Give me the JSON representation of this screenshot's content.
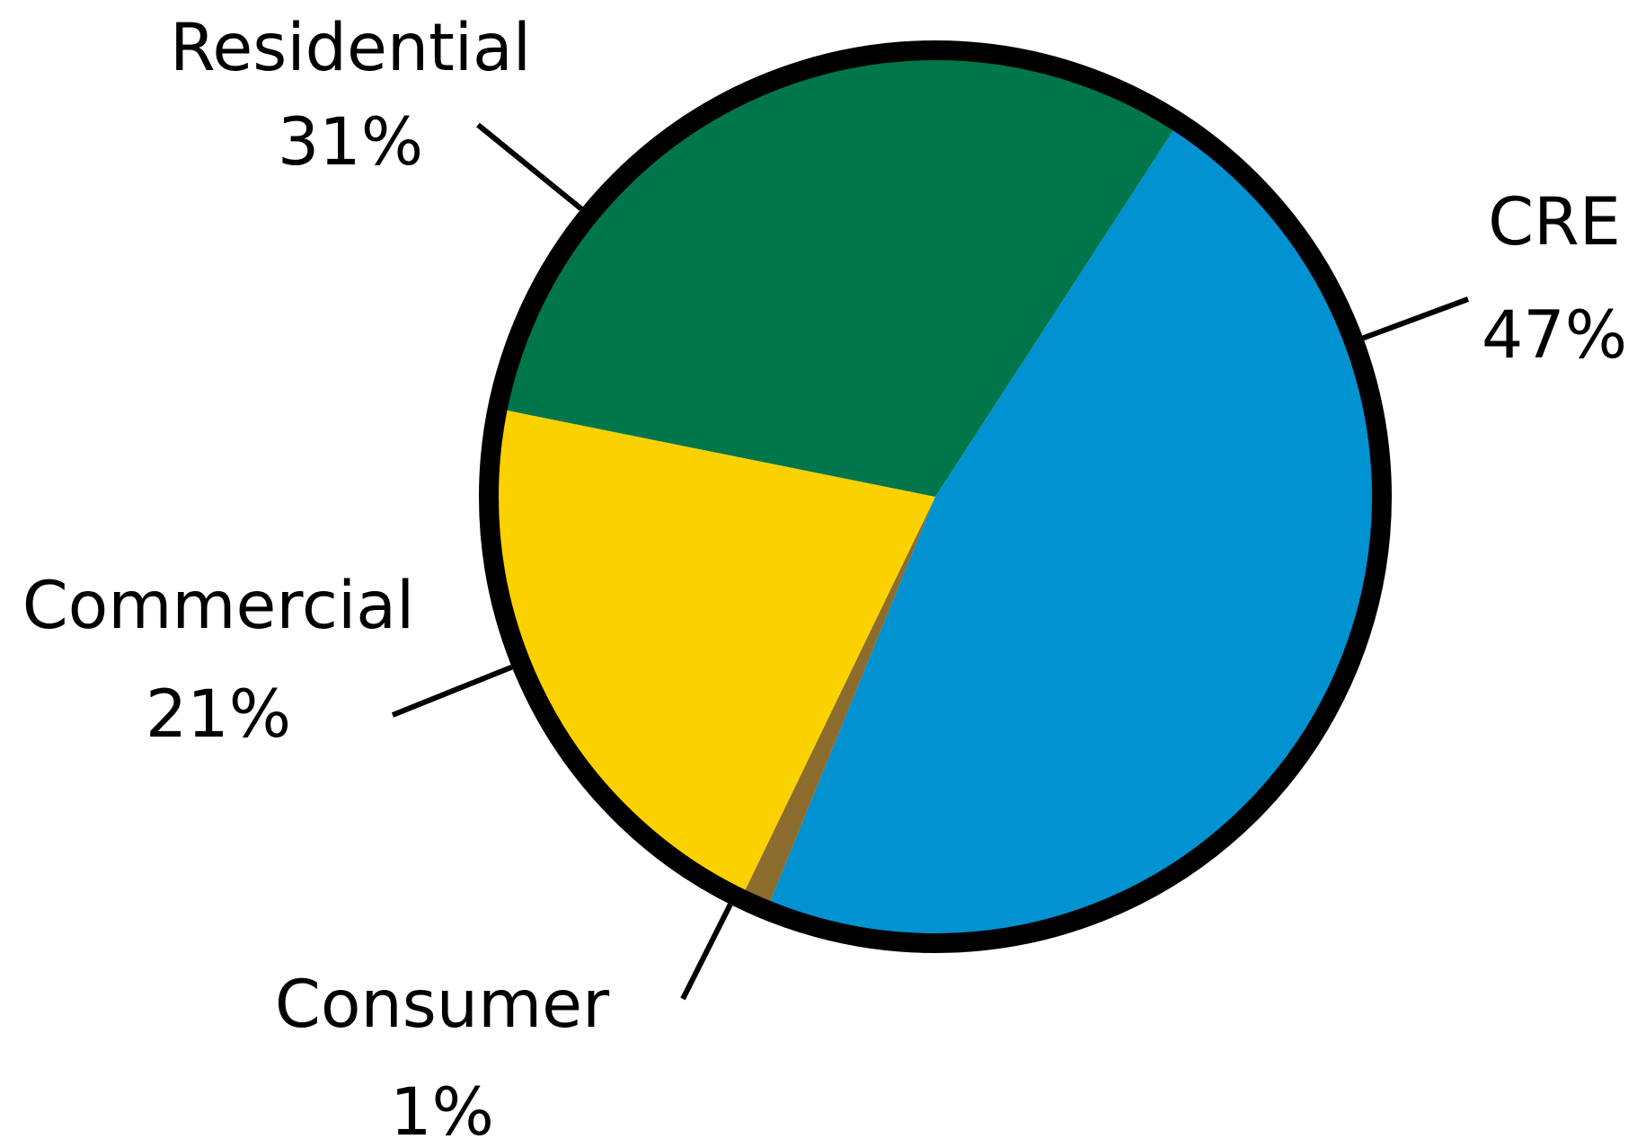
{
  "chart_data": {
    "type": "pie",
    "title": "",
    "slices": [
      {
        "label": "CRE",
        "value": 47,
        "value_label": "47%",
        "color": "#0092d1"
      },
      {
        "label": "Consumer",
        "value": 1,
        "value_label": "1%",
        "color": "#8c6d2e"
      },
      {
        "label": "Commercial",
        "value": 21,
        "value_label": "21%",
        "color": "#fcd100"
      },
      {
        "label": "Residential",
        "value": 31,
        "value_label": "31%",
        "color": "#00764a"
      }
    ],
    "outline_color": "#000000"
  }
}
